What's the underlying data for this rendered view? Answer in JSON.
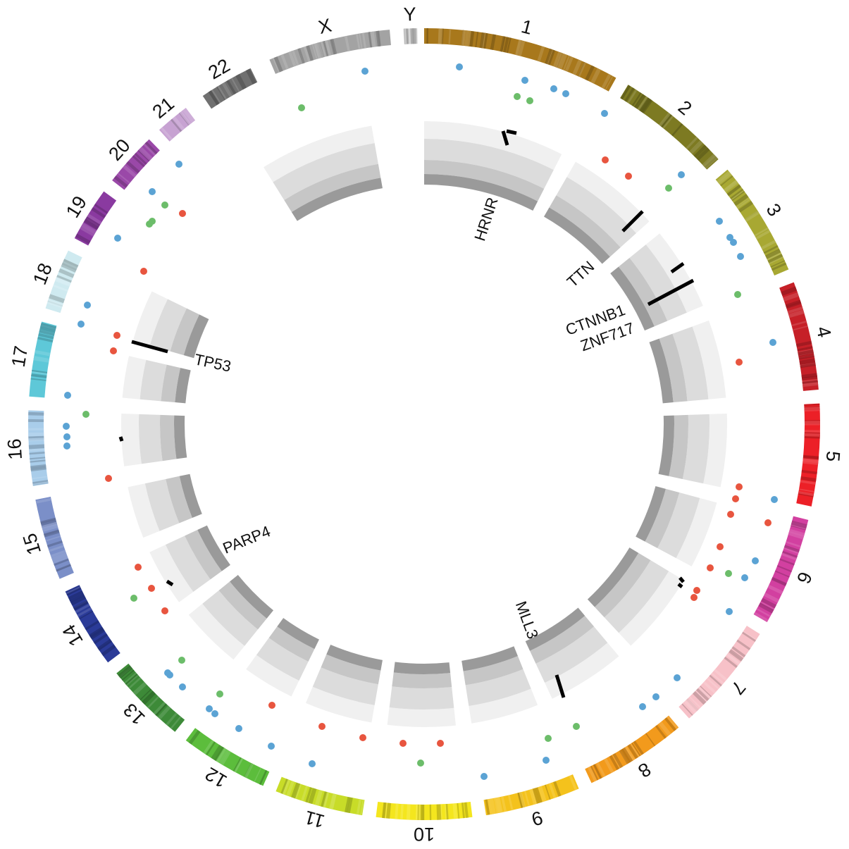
{
  "chart_data": {
    "type": "circos",
    "chromosomes": [
      {
        "name": "1",
        "label": "1",
        "color": "#a8781c"
      },
      {
        "name": "2",
        "label": "2",
        "color": "#7d7a22"
      },
      {
        "name": "3",
        "label": "3",
        "color": "#a8a832"
      },
      {
        "name": "4",
        "label": "4",
        "color": "#c62028"
      },
      {
        "name": "5",
        "label": "5",
        "color": "#ec2027"
      },
      {
        "name": "6",
        "label": "6",
        "color": "#d240a0"
      },
      {
        "name": "7",
        "label": "7",
        "color": "#f7c1c8"
      },
      {
        "name": "8",
        "label": "8",
        "color": "#f29a1c"
      },
      {
        "name": "9",
        "label": "9",
        "color": "#f4c21c"
      },
      {
        "name": "10",
        "label": "10",
        "color": "#f4e61e"
      },
      {
        "name": "11",
        "label": "11",
        "color": "#c8dc28"
      },
      {
        "name": "12",
        "label": "12",
        "color": "#5cbd3c"
      },
      {
        "name": "13",
        "label": "13",
        "color": "#3d8a38"
      },
      {
        "name": "14",
        "label": "14",
        "color": "#2b3b98"
      },
      {
        "name": "15",
        "label": "15",
        "color": "#7b8fc8"
      },
      {
        "name": "16",
        "label": "16",
        "color": "#a9cdea"
      },
      {
        "name": "17",
        "label": "17",
        "color": "#5ec8d8"
      },
      {
        "name": "18",
        "label": "18",
        "color": "#cfeaf0"
      },
      {
        "name": "19",
        "label": "19",
        "color": "#8a3aa0"
      },
      {
        "name": "20",
        "label": "20",
        "color": "#9a48a8"
      },
      {
        "name": "21",
        "label": "21",
        "color": "#c7a2d2"
      },
      {
        "name": "22",
        "label": "22",
        "color": "#707070"
      },
      {
        "name": "X",
        "label": "X",
        "color": "#a3a3a3"
      },
      {
        "name": "Y",
        "label": "Y",
        "color": "#cfcfcf"
      }
    ],
    "genes": [
      {
        "label": "HRNR"
      },
      {
        "label": "TTN"
      },
      {
        "label": "CTNNB1"
      },
      {
        "label": "ZNF717"
      },
      {
        "label": "TP53"
      },
      {
        "label": "PARP4"
      },
      {
        "label": "MLL3"
      }
    ],
    "mutation_colors": {
      "red": "#e8553f",
      "blue": "#5ba3d4",
      "green": "#6cbd6a"
    }
  }
}
